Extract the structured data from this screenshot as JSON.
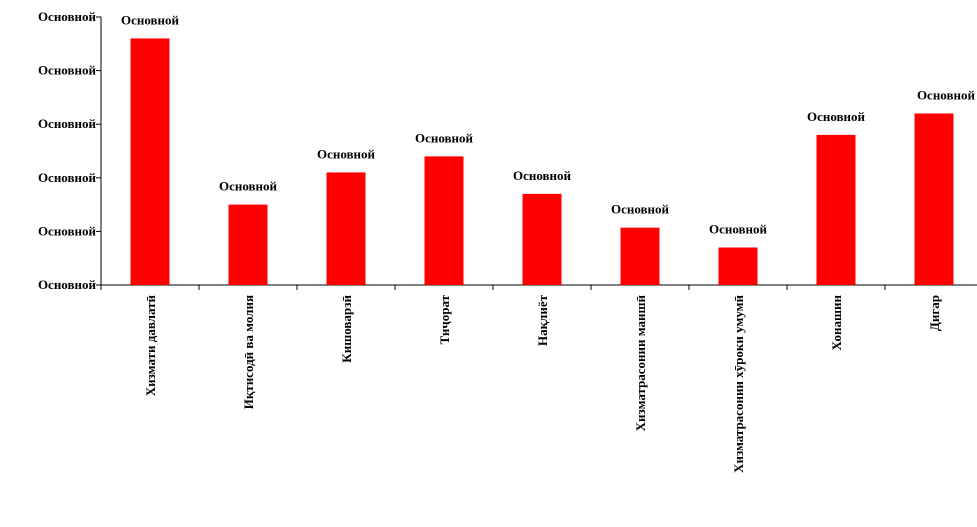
{
  "chart_data": {
    "type": "bar",
    "categories": [
      "Хизмати давлатӣ",
      "Иқтисодӣ ва молия",
      "Кишоварзӣ",
      "Тиҷорат",
      "Нақлиёт",
      "Хизматрасонии маишӣ",
      "Хизматрасонии хӯроки умумӣ",
      "Хонашин",
      "Дигар"
    ],
    "values": [
      4.6,
      1.5,
      2.1,
      2.4,
      1.7,
      1.07,
      0.7,
      2.8,
      3.2
    ],
    "data_labels": [
      "Основной",
      "Основной",
      "Основной",
      "Основной",
      "Основной",
      "Основной",
      "Основной",
      "Основной",
      "Основной"
    ],
    "ytick_labels": [
      "Основной",
      "Основной",
      "Основной",
      "Основной",
      "Основной",
      "Основной"
    ],
    "yticks": [
      0,
      1,
      2,
      3,
      4,
      5
    ],
    "ylim": [
      0,
      5
    ],
    "title": "",
    "xlabel": "",
    "ylabel": "",
    "bar_color": "#ff0000",
    "grid": false,
    "legend": "none"
  }
}
